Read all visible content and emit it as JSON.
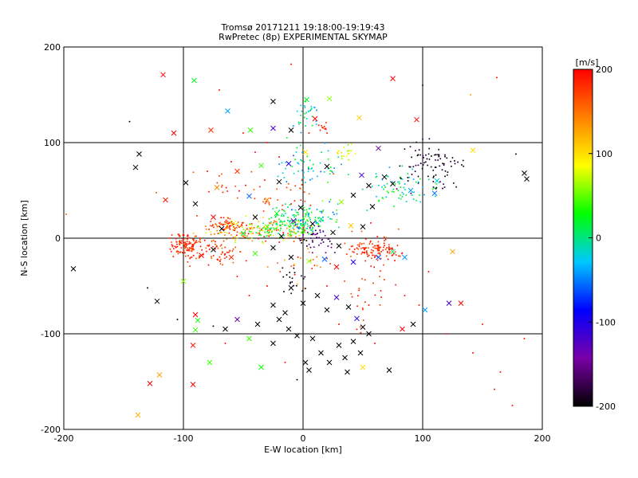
{
  "chart_data": {
    "type": "scatter",
    "title": "Tromsø 20171211 19:18:00-19:19:43",
    "subtitle": "RwPretec (8p) EXPERIMENTAL SKYMAP",
    "xlabel": "E-W location [km]",
    "ylabel": "N-S location [km]",
    "xlim": [
      -200,
      200
    ],
    "ylim": [
      -200,
      200
    ],
    "xticks": [
      "-200",
      "-100",
      "0",
      "100",
      "200"
    ],
    "yticks": [
      "-200",
      "-100",
      "0",
      "100",
      "200"
    ],
    "grid": true,
    "colorbar": {
      "label": "[m/s]",
      "range": [
        -200,
        200
      ],
      "ticks": [
        "-200",
        "-100",
        "0",
        "100",
        "200"
      ],
      "colors": [
        "#000000",
        "#7a00a8",
        "#0000ff",
        "#00c8ff",
        "#00ff00",
        "#ffff00",
        "#ff8000",
        "#ff0000"
      ]
    },
    "marker_types": [
      "x",
      "dot"
    ],
    "points": [
      {
        "x": -117,
        "y": 171,
        "v": 200,
        "m": "x"
      },
      {
        "x": -91,
        "y": 165,
        "v": 20,
        "m": "x"
      },
      {
        "x": -108,
        "y": 110,
        "v": 200,
        "m": "x"
      },
      {
        "x": -77,
        "y": 113,
        "v": 180,
        "m": "x"
      },
      {
        "x": -63,
        "y": 133,
        "v": -40,
        "m": "x"
      },
      {
        "x": -44,
        "y": 113,
        "v": 40,
        "m": "x"
      },
      {
        "x": -25,
        "y": 115,
        "v": -120,
        "m": "x"
      },
      {
        "x": -25,
        "y": 143,
        "v": -200,
        "m": "x"
      },
      {
        "x": -10,
        "y": 113,
        "v": -200,
        "m": "x"
      },
      {
        "x": 3,
        "y": 145,
        "v": 20,
        "m": "x"
      },
      {
        "x": 10,
        "y": 125,
        "v": 200,
        "m": "x"
      },
      {
        "x": 22,
        "y": 146,
        "v": 60,
        "m": "x"
      },
      {
        "x": 47,
        "y": 126,
        "v": 110,
        "m": "x"
      },
      {
        "x": 63,
        "y": 94,
        "v": -150,
        "m": "x"
      },
      {
        "x": 75,
        "y": 167,
        "v": 200,
        "m": "x"
      },
      {
        "x": 95,
        "y": 124,
        "v": 200,
        "m": "x"
      },
      {
        "x": 142,
        "y": 92,
        "v": 100,
        "m": "x"
      },
      {
        "x": -137,
        "y": 88,
        "v": -200,
        "m": "x"
      },
      {
        "x": -140,
        "y": 74,
        "v": -200,
        "m": "x"
      },
      {
        "x": -115,
        "y": 40,
        "v": 190,
        "m": "x"
      },
      {
        "x": -98,
        "y": 58,
        "v": -200,
        "m": "x"
      },
      {
        "x": -72,
        "y": 53,
        "v": 140,
        "m": "x"
      },
      {
        "x": -55,
        "y": 70,
        "v": 180,
        "m": "x"
      },
      {
        "x": -45,
        "y": 44,
        "v": -60,
        "m": "x"
      },
      {
        "x": -35,
        "y": 76,
        "v": 40,
        "m": "x"
      },
      {
        "x": -20,
        "y": 59,
        "v": -200,
        "m": "x"
      },
      {
        "x": -12,
        "y": 78,
        "v": -100,
        "m": "x"
      },
      {
        "x": 2,
        "y": 90,
        "v": 100,
        "m": "x"
      },
      {
        "x": 20,
        "y": 75,
        "v": -200,
        "m": "x"
      },
      {
        "x": 42,
        "y": 45,
        "v": -200,
        "m": "x"
      },
      {
        "x": 55,
        "y": 55,
        "v": -200,
        "m": "x"
      },
      {
        "x": 68,
        "y": 64,
        "v": -200,
        "m": "x"
      },
      {
        "x": 75,
        "y": 57,
        "v": -200,
        "m": "x"
      },
      {
        "x": 49,
        "y": 66,
        "v": -120,
        "m": "x"
      },
      {
        "x": 90,
        "y": 50,
        "v": -40,
        "m": "x"
      },
      {
        "x": 110,
        "y": 47,
        "v": -50,
        "m": "x"
      },
      {
        "x": 112,
        "y": 60,
        "v": -20,
        "m": "x"
      },
      {
        "x": 185,
        "y": 68,
        "v": -200,
        "m": "x"
      },
      {
        "x": 187,
        "y": 62,
        "v": -200,
        "m": "x"
      },
      {
        "x": -90,
        "y": 36,
        "v": -200,
        "m": "x"
      },
      {
        "x": -75,
        "y": 22,
        "v": 200,
        "m": "x"
      },
      {
        "x": -68,
        "y": 10,
        "v": -200,
        "m": "x"
      },
      {
        "x": -58,
        "y": 16,
        "v": 80,
        "m": "x"
      },
      {
        "x": -50,
        "y": 5,
        "v": 20,
        "m": "x"
      },
      {
        "x": -40,
        "y": 22,
        "v": -200,
        "m": "x"
      },
      {
        "x": -30,
        "y": 12,
        "v": 50,
        "m": "x"
      },
      {
        "x": -22,
        "y": 26,
        "v": 30,
        "m": "x"
      },
      {
        "x": -18,
        "y": 2,
        "v": -200,
        "m": "x"
      },
      {
        "x": -8,
        "y": 18,
        "v": -140,
        "m": "x"
      },
      {
        "x": 0,
        "y": 8,
        "v": 40,
        "m": "x"
      },
      {
        "x": 8,
        "y": 15,
        "v": -200,
        "m": "x"
      },
      {
        "x": 15,
        "y": 20,
        "v": 0,
        "m": "x"
      },
      {
        "x": 25,
        "y": 6,
        "v": -200,
        "m": "x"
      },
      {
        "x": 30,
        "y": -8,
        "v": -200,
        "m": "x"
      },
      {
        "x": 40,
        "y": 13,
        "v": 110,
        "m": "x"
      },
      {
        "x": 50,
        "y": 12,
        "v": -200,
        "m": "x"
      },
      {
        "x": 58,
        "y": 33,
        "v": -200,
        "m": "x"
      },
      {
        "x": 32,
        "y": 38,
        "v": 60,
        "m": "x"
      },
      {
        "x": -2,
        "y": 32,
        "v": -200,
        "m": "x"
      },
      {
        "x": -30,
        "y": 40,
        "v": 140,
        "m": "x"
      },
      {
        "x": -85,
        "y": -18,
        "v": 200,
        "m": "x"
      },
      {
        "x": -75,
        "y": -12,
        "v": -200,
        "m": "x"
      },
      {
        "x": -60,
        "y": -20,
        "v": 180,
        "m": "x"
      },
      {
        "x": -40,
        "y": -16,
        "v": 40,
        "m": "x"
      },
      {
        "x": -25,
        "y": -10,
        "v": -200,
        "m": "x"
      },
      {
        "x": -10,
        "y": -20,
        "v": -200,
        "m": "x"
      },
      {
        "x": 5,
        "y": -24,
        "v": 60,
        "m": "x"
      },
      {
        "x": 18,
        "y": -22,
        "v": -60,
        "m": "x"
      },
      {
        "x": 28,
        "y": -30,
        "v": 200,
        "m": "x"
      },
      {
        "x": 42,
        "y": -25,
        "v": -100,
        "m": "x"
      },
      {
        "x": 63,
        "y": -20,
        "v": -60,
        "m": "x"
      },
      {
        "x": 75,
        "y": -14,
        "v": 0,
        "m": "x"
      },
      {
        "x": 85,
        "y": -20,
        "v": -40,
        "m": "x"
      },
      {
        "x": 125,
        "y": -14,
        "v": 130,
        "m": "x"
      },
      {
        "x": -192,
        "y": -32,
        "v": -200,
        "m": "x"
      },
      {
        "x": -122,
        "y": -66,
        "v": -200,
        "m": "x"
      },
      {
        "x": -100,
        "y": -45,
        "v": 60,
        "m": "x"
      },
      {
        "x": -90,
        "y": -80,
        "v": 200,
        "m": "x"
      },
      {
        "x": -88,
        "y": -86,
        "v": 30,
        "m": "x"
      },
      {
        "x": -90,
        "y": -96,
        "v": 40,
        "m": "x"
      },
      {
        "x": -65,
        "y": -95,
        "v": -200,
        "m": "x"
      },
      {
        "x": -55,
        "y": -85,
        "v": -150,
        "m": "x"
      },
      {
        "x": -38,
        "y": -90,
        "v": -200,
        "m": "x"
      },
      {
        "x": -25,
        "y": -70,
        "v": -200,
        "m": "x"
      },
      {
        "x": -20,
        "y": -85,
        "v": -200,
        "m": "x"
      },
      {
        "x": -15,
        "y": -78,
        "v": -200,
        "m": "x"
      },
      {
        "x": -12,
        "y": -95,
        "v": -200,
        "m": "x"
      },
      {
        "x": -5,
        "y": -102,
        "v": -200,
        "m": "x"
      },
      {
        "x": -10,
        "y": -52,
        "v": -200,
        "m": "x"
      },
      {
        "x": 0,
        "y": -68,
        "v": -200,
        "m": "x"
      },
      {
        "x": 12,
        "y": -60,
        "v": -200,
        "m": "x"
      },
      {
        "x": 20,
        "y": -75,
        "v": -200,
        "m": "x"
      },
      {
        "x": 28,
        "y": -62,
        "v": -120,
        "m": "x"
      },
      {
        "x": 38,
        "y": -72,
        "v": -200,
        "m": "x"
      },
      {
        "x": 45,
        "y": -84,
        "v": -100,
        "m": "x"
      },
      {
        "x": 50,
        "y": -93,
        "v": -200,
        "m": "x"
      },
      {
        "x": 55,
        "y": -100,
        "v": -200,
        "m": "x"
      },
      {
        "x": 8,
        "y": -105,
        "v": -200,
        "m": "x"
      },
      {
        "x": 15,
        "y": -120,
        "v": -200,
        "m": "x"
      },
      {
        "x": 22,
        "y": -130,
        "v": -200,
        "m": "x"
      },
      {
        "x": 30,
        "y": -112,
        "v": -200,
        "m": "x"
      },
      {
        "x": 35,
        "y": -125,
        "v": -200,
        "m": "x"
      },
      {
        "x": 42,
        "y": -108,
        "v": -200,
        "m": "x"
      },
      {
        "x": 48,
        "y": -120,
        "v": -200,
        "m": "x"
      },
      {
        "x": 2,
        "y": -130,
        "v": -200,
        "m": "x"
      },
      {
        "x": 37,
        "y": -140,
        "v": -200,
        "m": "x"
      },
      {
        "x": 50,
        "y": -135,
        "v": 100,
        "m": "x"
      },
      {
        "x": 72,
        "y": -138,
        "v": -200,
        "m": "x"
      },
      {
        "x": 83,
        "y": -95,
        "v": 200,
        "m": "x"
      },
      {
        "x": 92,
        "y": -90,
        "v": -200,
        "m": "x"
      },
      {
        "x": 102,
        "y": -75,
        "v": -40,
        "m": "x"
      },
      {
        "x": 122,
        "y": -68,
        "v": -120,
        "m": "x"
      },
      {
        "x": 132,
        "y": -68,
        "v": 200,
        "m": "x"
      },
      {
        "x": -92,
        "y": -112,
        "v": 190,
        "m": "x"
      },
      {
        "x": -45,
        "y": -105,
        "v": 40,
        "m": "x"
      },
      {
        "x": -25,
        "y": -110,
        "v": -200,
        "m": "x"
      },
      {
        "x": -35,
        "y": -135,
        "v": 30,
        "m": "x"
      },
      {
        "x": -78,
        "y": -130,
        "v": 40,
        "m": "x"
      },
      {
        "x": -128,
        "y": -152,
        "v": 200,
        "m": "x"
      },
      {
        "x": -138,
        "y": -185,
        "v": 120,
        "m": "x"
      },
      {
        "x": -92,
        "y": -153,
        "v": 200,
        "m": "x"
      },
      {
        "x": -120,
        "y": -143,
        "v": 130,
        "m": "x"
      },
      {
        "x": 5,
        "y": -138,
        "v": -200,
        "m": "x"
      },
      {
        "x": -145,
        "y": 122,
        "v": -200,
        "m": "dot"
      },
      {
        "x": -198,
        "y": 25,
        "v": 160,
        "m": "dot"
      },
      {
        "x": -70,
        "y": 155,
        "v": 200,
        "m": "dot"
      },
      {
        "x": -10,
        "y": 182,
        "v": 200,
        "m": "dot"
      },
      {
        "x": 100,
        "y": 160,
        "v": -200,
        "m": "dot"
      },
      {
        "x": 140,
        "y": 150,
        "v": 130,
        "m": "dot"
      },
      {
        "x": 162,
        "y": 168,
        "v": 200,
        "m": "dot"
      },
      {
        "x": 178,
        "y": 88,
        "v": -200,
        "m": "dot"
      },
      {
        "x": -130,
        "y": -52,
        "v": -200,
        "m": "dot"
      },
      {
        "x": -105,
        "y": -85,
        "v": -200,
        "m": "dot"
      },
      {
        "x": -75,
        "y": -92,
        "v": -200,
        "m": "dot"
      },
      {
        "x": -5,
        "y": -148,
        "v": -200,
        "m": "dot"
      },
      {
        "x": 160,
        "y": -158,
        "v": 200,
        "m": "dot"
      },
      {
        "x": 175,
        "y": -175,
        "v": 200,
        "m": "dot"
      },
      {
        "x": 185,
        "y": -105,
        "v": 200,
        "m": "dot"
      },
      {
        "x": 150,
        "y": -90,
        "v": 200,
        "m": "dot"
      },
      {
        "x": 105,
        "y": -35,
        "v": 200,
        "m": "dot"
      },
      {
        "x": 97,
        "y": -70,
        "v": 200,
        "m": "dot"
      },
      {
        "x": 120,
        "y": -100,
        "v": 200,
        "m": "dot"
      },
      {
        "x": 142,
        "y": -120,
        "v": 200,
        "m": "dot"
      },
      {
        "x": 165,
        "y": -140,
        "v": 200,
        "m": "dot"
      },
      {
        "x": 65,
        "y": -55,
        "v": 200,
        "m": "dot"
      },
      {
        "x": 55,
        "y": -70,
        "v": 200,
        "m": "dot"
      },
      {
        "x": 85,
        "y": -60,
        "v": 200,
        "m": "dot"
      },
      {
        "x": -50,
        "y": 110,
        "v": 200,
        "m": "dot"
      },
      {
        "x": -30,
        "y": 100,
        "v": 200,
        "m": "dot"
      },
      {
        "x": -40,
        "y": 90,
        "v": 200,
        "m": "dot"
      },
      {
        "x": -60,
        "y": 80,
        "v": 200,
        "m": "dot"
      },
      {
        "x": -20,
        "y": 85,
        "v": 200,
        "m": "dot"
      },
      {
        "x": 5,
        "y": 110,
        "v": 200,
        "m": "dot"
      },
      {
        "x": -55,
        "y": -40,
        "v": 200,
        "m": "dot"
      },
      {
        "x": -45,
        "y": -60,
        "v": 200,
        "m": "dot"
      },
      {
        "x": -30,
        "y": -50,
        "v": 200,
        "m": "dot"
      },
      {
        "x": 20,
        "y": -50,
        "v": 200,
        "m": "dot"
      },
      {
        "x": 30,
        "y": -90,
        "v": 200,
        "m": "dot"
      },
      {
        "x": 60,
        "y": -110,
        "v": 200,
        "m": "dot"
      },
      {
        "x": -15,
        "y": -130,
        "v": 200,
        "m": "dot"
      },
      {
        "x": -65,
        "y": -110,
        "v": 200,
        "m": "dot"
      },
      {
        "x": -80,
        "y": 70,
        "v": 200,
        "m": "dot"
      }
    ],
    "clusters": [
      {
        "cx": -98,
        "cy": -8,
        "sx": 6,
        "sy": 6,
        "n": 110,
        "vmin": 160,
        "vmax": 200,
        "m": "dot"
      },
      {
        "cx": -75,
        "cy": -12,
        "sx": 12,
        "sy": 7,
        "n": 70,
        "vmin": 150,
        "vmax": 200,
        "m": "dot"
      },
      {
        "cx": -55,
        "cy": 8,
        "sx": 14,
        "sy": 6,
        "n": 90,
        "vmin": 60,
        "vmax": 200,
        "m": "dot"
      },
      {
        "cx": -65,
        "cy": 15,
        "sx": 8,
        "sy": 4,
        "n": 50,
        "vmin": 150,
        "vmax": 200,
        "m": "dot"
      },
      {
        "cx": -25,
        "cy": 8,
        "sx": 14,
        "sy": 6,
        "n": 120,
        "vmin": 0,
        "vmax": 200,
        "m": "dot"
      },
      {
        "cx": -10,
        "cy": 18,
        "sx": 10,
        "sy": 7,
        "n": 90,
        "vmin": -20,
        "vmax": 40,
        "m": "dot"
      },
      {
        "cx": 10,
        "cy": 22,
        "sx": 10,
        "sy": 7,
        "n": 70,
        "vmin": -60,
        "vmax": 60,
        "m": "dot"
      },
      {
        "cx": 12,
        "cy": 0,
        "sx": 8,
        "sy": 6,
        "n": 50,
        "vmin": -200,
        "vmax": -120,
        "m": "dot"
      },
      {
        "cx": 65,
        "cy": -12,
        "sx": 9,
        "sy": 5,
        "n": 80,
        "vmin": 160,
        "vmax": 200,
        "m": "dot"
      },
      {
        "cx": 50,
        "cy": -13,
        "sx": 6,
        "sy": 4,
        "n": 40,
        "vmin": 160,
        "vmax": 200,
        "m": "dot"
      },
      {
        "cx": 105,
        "cy": 78,
        "sx": 12,
        "sy": 14,
        "n": 90,
        "vmin": -200,
        "vmax": -170,
        "m": "dot"
      },
      {
        "cx": 80,
        "cy": 52,
        "sx": 14,
        "sy": 10,
        "n": 70,
        "vmin": -40,
        "vmax": 40,
        "m": "dot"
      },
      {
        "cx": 10,
        "cy": 78,
        "sx": 15,
        "sy": 10,
        "n": 60,
        "vmin": -60,
        "vmax": 40,
        "m": "dot"
      },
      {
        "cx": 35,
        "cy": 90,
        "sx": 6,
        "sy": 5,
        "n": 20,
        "vmin": 50,
        "vmax": 110,
        "m": "dot"
      },
      {
        "cx": 3,
        "cy": 130,
        "sx": 5,
        "sy": 8,
        "n": 30,
        "vmin": -50,
        "vmax": 30,
        "m": "dot"
      },
      {
        "cx": 16,
        "cy": 115,
        "sx": 3,
        "sy": 3,
        "n": 12,
        "vmin": 180,
        "vmax": 200,
        "m": "dot"
      },
      {
        "cx": -40,
        "cy": 45,
        "sx": 30,
        "sy": 12,
        "n": 50,
        "vmin": 150,
        "vmax": 200,
        "m": "dot"
      },
      {
        "cx": 55,
        "cy": -40,
        "sx": 10,
        "sy": 25,
        "n": 35,
        "vmin": 160,
        "vmax": 200,
        "m": "dot"
      },
      {
        "cx": 0,
        "cy": -30,
        "sx": 15,
        "sy": 15,
        "n": 25,
        "vmin": 100,
        "vmax": 200,
        "m": "dot"
      },
      {
        "cx": -10,
        "cy": -45,
        "sx": 6,
        "sy": 8,
        "n": 20,
        "vmin": -200,
        "vmax": -180,
        "m": "dot"
      }
    ]
  }
}
